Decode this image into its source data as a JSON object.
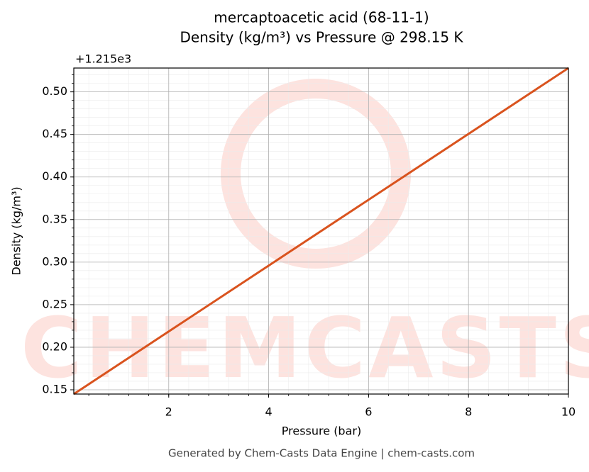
{
  "chart_data": {
    "type": "line",
    "title": "mercaptoacetic acid (68-11-1)",
    "subtitle": "Density (kg/m³) vs Pressure @ 298.15 K",
    "x_label": "Pressure (bar)",
    "y_label": "Density (kg/m³)",
    "y_offset_label": "+1.215e3",
    "footer": "Generated by Chem-Casts Data Engine | chem-casts.com",
    "watermark": "CHEMCASTS",
    "x": [
      0.1,
      10
    ],
    "series": [
      {
        "name": "Density",
        "color": "#d9531e",
        "values": [
          0.145,
          0.528
        ]
      }
    ],
    "xlim": [
      0.1,
      10
    ],
    "xticks": [
      2,
      4,
      6,
      8,
      10
    ],
    "ylim": [
      0.145,
      0.528
    ],
    "yticks": [
      {
        "value": 0.15,
        "label": "0.15"
      },
      {
        "value": 0.2,
        "label": "0.20"
      },
      {
        "value": 0.25,
        "label": "0.25"
      },
      {
        "value": 0.3,
        "label": "0.30"
      },
      {
        "value": 0.35,
        "label": "0.35"
      },
      {
        "value": 0.4,
        "label": "0.40"
      },
      {
        "value": 0.45,
        "label": "0.45"
      },
      {
        "value": 0.5,
        "label": "0.50"
      }
    ],
    "grid": true,
    "minor_grid": true
  }
}
